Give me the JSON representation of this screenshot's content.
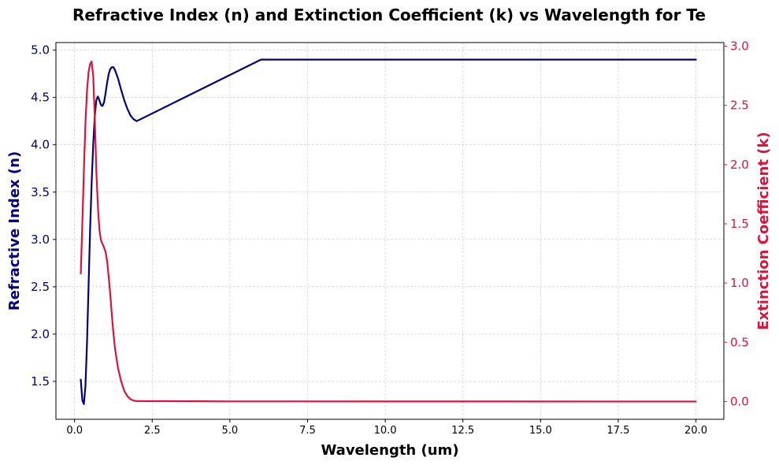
{
  "chart_data": {
    "type": "line",
    "title": "Refractive Index (n) and Extinction Coefficient (k) vs Wavelength for Te",
    "xlabel": "Wavelength (um)",
    "ylabel_left": "Refractive Index (n)",
    "ylabel_right": "Extinction Coefficient (k)",
    "xlim": [
      -0.6,
      20.9
    ],
    "ylim_left": [
      1.1,
      5.08
    ],
    "ylim_right": [
      -0.15,
      3.03
    ],
    "x_ticks": [
      0.0,
      2.5,
      5.0,
      7.5,
      10.0,
      12.5,
      15.0,
      17.5,
      20.0
    ],
    "x_tick_labels": [
      "0.0",
      "2.5",
      "5.0",
      "7.5",
      "10.0",
      "12.5",
      "15.0",
      "17.5",
      "20.0"
    ],
    "y_left_ticks": [
      1.5,
      2.0,
      2.5,
      3.0,
      3.5,
      4.0,
      4.5,
      5.0
    ],
    "y_left_tick_labels": [
      "1.5",
      "2.0",
      "2.5",
      "3.0",
      "3.5",
      "4.0",
      "4.5",
      "5.0"
    ],
    "y_right_ticks": [
      0.0,
      0.5,
      1.0,
      1.5,
      2.0,
      2.5,
      3.0
    ],
    "y_right_tick_labels": [
      "0.0",
      "0.5",
      "1.0",
      "1.5",
      "2.0",
      "2.5",
      "3.0"
    ],
    "grid": true,
    "series": [
      {
        "axis": "left",
        "color": "#000080",
        "points": [
          [
            0.2,
            1.52
          ],
          [
            0.25,
            1.3
          ],
          [
            0.3,
            1.26
          ],
          [
            0.35,
            1.45
          ],
          [
            0.4,
            1.9
          ],
          [
            0.45,
            2.5
          ],
          [
            0.5,
            3.1
          ],
          [
            0.55,
            3.6
          ],
          [
            0.6,
            4.0
          ],
          [
            0.65,
            4.3
          ],
          [
            0.7,
            4.47
          ],
          [
            0.75,
            4.51
          ],
          [
            0.8,
            4.47
          ],
          [
            0.85,
            4.42
          ],
          [
            0.9,
            4.41
          ],
          [
            0.95,
            4.45
          ],
          [
            1.0,
            4.55
          ],
          [
            1.05,
            4.66
          ],
          [
            1.1,
            4.75
          ],
          [
            1.15,
            4.8
          ],
          [
            1.2,
            4.82
          ],
          [
            1.25,
            4.82
          ],
          [
            1.3,
            4.79
          ],
          [
            1.4,
            4.7
          ],
          [
            1.5,
            4.58
          ],
          [
            1.6,
            4.47
          ],
          [
            1.7,
            4.38
          ],
          [
            1.8,
            4.31
          ],
          [
            1.9,
            4.27
          ],
          [
            2.0,
            4.25
          ],
          [
            6.0,
            4.9
          ],
          [
            20.0,
            4.9
          ]
        ]
      },
      {
        "axis": "right",
        "color": "#dc143c",
        "points": [
          [
            0.2,
            1.08
          ],
          [
            0.25,
            1.5
          ],
          [
            0.3,
            1.95
          ],
          [
            0.35,
            2.35
          ],
          [
            0.4,
            2.62
          ],
          [
            0.45,
            2.78
          ],
          [
            0.5,
            2.85
          ],
          [
            0.55,
            2.87
          ],
          [
            0.6,
            2.75
          ],
          [
            0.65,
            2.4
          ],
          [
            0.7,
            1.95
          ],
          [
            0.75,
            1.65
          ],
          [
            0.8,
            1.45
          ],
          [
            0.85,
            1.36
          ],
          [
            0.9,
            1.33
          ],
          [
            0.95,
            1.3
          ],
          [
            1.0,
            1.26
          ],
          [
            1.05,
            1.18
          ],
          [
            1.1,
            1.05
          ],
          [
            1.15,
            0.9
          ],
          [
            1.2,
            0.73
          ],
          [
            1.25,
            0.58
          ],
          [
            1.3,
            0.45
          ],
          [
            1.4,
            0.28
          ],
          [
            1.5,
            0.17
          ],
          [
            1.6,
            0.09
          ],
          [
            1.7,
            0.045
          ],
          [
            1.8,
            0.02
          ],
          [
            1.9,
            0.008
          ],
          [
            2.0,
            0.004
          ],
          [
            5.0,
            0.001
          ],
          [
            20.0,
            0.0
          ]
        ]
      }
    ]
  }
}
